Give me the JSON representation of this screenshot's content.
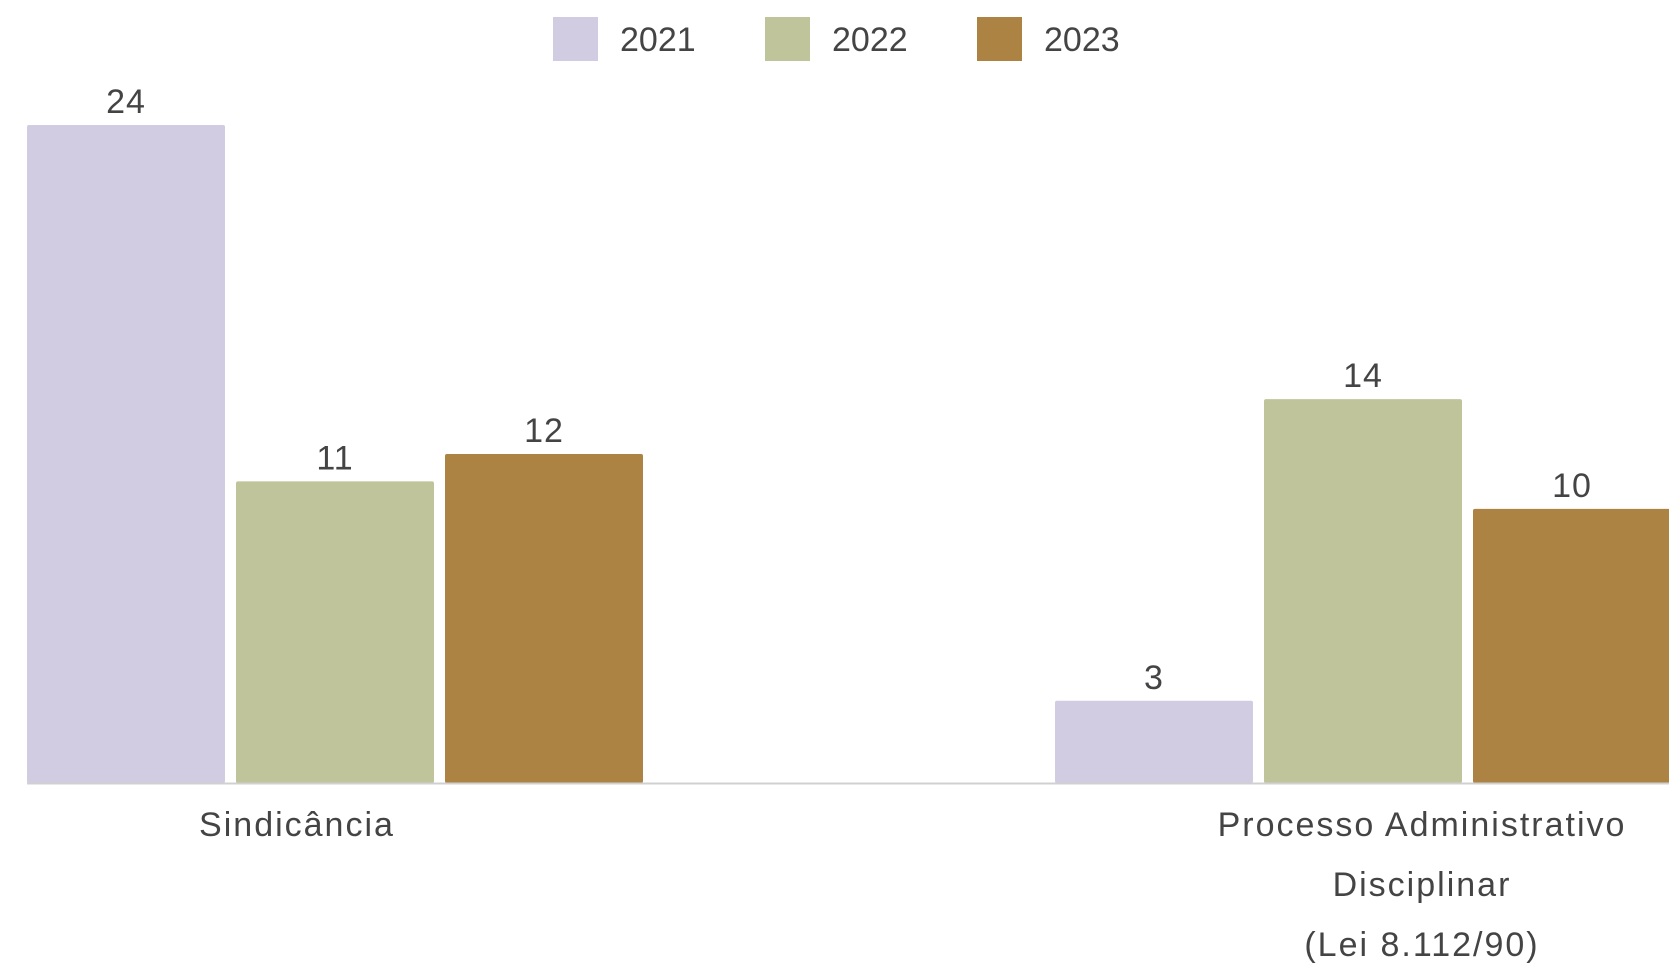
{
  "chart_data": {
    "type": "bar",
    "categories": [
      [
        "Sindicância"
      ],
      [
        "Processo Administrativo",
        "Disciplinar",
        "(Lei 8.112/90)"
      ]
    ],
    "series": [
      {
        "name": "2021",
        "color": "#d1cce1",
        "values": [
          24,
          3
        ]
      },
      {
        "name": "2022",
        "color": "#c0c49b",
        "values": [
          11,
          14
        ]
      },
      {
        "name": "2023",
        "color": "#ad8343",
        "values": [
          12,
          10
        ]
      }
    ],
    "title": "",
    "xlabel": "",
    "ylabel": "",
    "ylim": [
      0,
      24
    ],
    "grid": false,
    "legend_position": "top-center",
    "data_labels": true,
    "axis_color": "#d0d0d0"
  }
}
